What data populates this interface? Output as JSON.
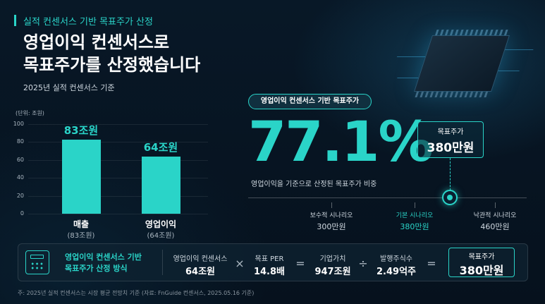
{
  "header": {
    "kicker": "실적 컨센서스 기반 목표주가 산정",
    "title_line1": "영업이익 컨센서스로",
    "title_line2": "목표주가를 산정했습니다",
    "subtitle": "2025년 실적 컨센서스 기준"
  },
  "chart_data": {
    "type": "bar",
    "unit_label": "(단위: 조원)",
    "categories": [
      "매출",
      "영업이익"
    ],
    "sublabels": [
      "(83조원)",
      "(64조원)"
    ],
    "values": [
      83,
      64
    ],
    "value_labels": [
      "83조원",
      "64조원"
    ],
    "yticks": [
      "100",
      "80",
      "60",
      "40",
      "20",
      "0"
    ],
    "ylim": [
      0,
      100
    ],
    "grid": true,
    "color": "#2ad4c8"
  },
  "ratio": {
    "pill": "영업이익 컨센서스 기반 목표주가",
    "value": "77.1%",
    "description": "영업이익을 기준으로 산정된 목표주가 비중"
  },
  "target": {
    "label": "목표주가",
    "value": "380만원"
  },
  "scenarios": [
    {
      "name": "보수적 시나리오",
      "value": "300만원",
      "highlight": false
    },
    {
      "name": "기본 시나리오",
      "value": "380만원",
      "highlight": true
    },
    {
      "name": "낙관적 시나리오",
      "value": "460만원",
      "highlight": false
    }
  ],
  "formula": {
    "method_line1": "영업이익 컨센서스 기반",
    "method_line2": "목표주가 산정 방식",
    "terms": [
      {
        "label": "영업이익 컨센서스",
        "value": "64조원"
      },
      {
        "label": "목표 PER",
        "value": "14.8배"
      },
      {
        "label": "기업가치",
        "value": "947조원"
      },
      {
        "label": "발행주식수",
        "value": "2.49억주"
      }
    ],
    "operators": [
      "×",
      "=",
      "÷",
      "="
    ],
    "result_label": "목표주가",
    "result_value": "380만원"
  },
  "footnote": "주: 2025년 실적 컨센서스는 시장 평균 전망치 기준 (자료: FnGuide 컨센서스, 2025.05.16 기준)",
  "icons": {
    "calculator": "calculator-icon",
    "chip": "chip-graphic"
  },
  "colors": {
    "accent": "#2ad4c8",
    "background": "#071421"
  }
}
